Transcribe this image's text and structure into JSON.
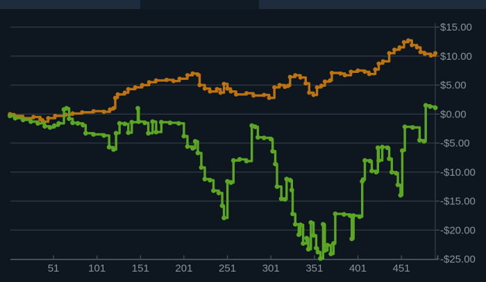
{
  "header": {
    "note": "two lighter panel segments of the window above the chart, no visible text"
  },
  "colors": {
    "background": "#0e161f",
    "header_segment": "#1e2c3d",
    "header_gap": "#111b25",
    "gridline": "#323d48",
    "axis_line": "#5a646e",
    "tick": "#46505a",
    "label_text": "#8a939c",
    "series_orange": "#bd7310",
    "series_green": "#5ba724"
  },
  "chart_data": {
    "type": "line",
    "title": "",
    "xlabel": "",
    "ylabel": "",
    "legend": "none",
    "grid": "horizontal",
    "style": "stepped line with point markers",
    "x_range": [
      1,
      490
    ],
    "y_range": [
      -25,
      15
    ],
    "x_axis": {
      "ticks": [
        51,
        101,
        151,
        201,
        251,
        301,
        351,
        401,
        451
      ],
      "labels": [
        "51",
        "101",
        "151",
        "201",
        "251",
        "301",
        "351",
        "401",
        "451"
      ]
    },
    "y_axis": {
      "side": "right",
      "ticks": [
        15,
        10,
        5,
        0,
        -5,
        -10,
        -15,
        -20,
        -25
      ],
      "labels": [
        "$15.00",
        "$10.00",
        "$5.00",
        "$0.00",
        "-$5.00",
        "-$10.00",
        "-$15.00",
        "-$20.00",
        "-$25.00"
      ]
    },
    "series": [
      {
        "name": "orange-series",
        "color": "#bd7310",
        "points": [
          [
            1,
            0
          ],
          [
            6,
            -0.3
          ],
          [
            16,
            -0.7
          ],
          [
            28,
            -0.5
          ],
          [
            36,
            -0.9
          ],
          [
            39,
            -1.3
          ],
          [
            45,
            -0.7
          ],
          [
            53,
            -0.3
          ],
          [
            65,
            -0.1
          ],
          [
            73,
            0.1
          ],
          [
            84,
            0.3
          ],
          [
            97,
            0.5
          ],
          [
            109,
            0.4
          ],
          [
            116,
            0.8
          ],
          [
            120,
            1.0
          ],
          [
            122,
            2.8
          ],
          [
            125,
            3.4
          ],
          [
            133,
            3.7
          ],
          [
            137,
            4.3
          ],
          [
            145,
            4.6
          ],
          [
            153,
            5.0
          ],
          [
            161,
            5.5
          ],
          [
            169,
            5.8
          ],
          [
            181,
            5.9
          ],
          [
            189,
            5.7
          ],
          [
            196,
            6.1
          ],
          [
            205,
            6.7
          ],
          [
            211,
            7.0
          ],
          [
            217,
            6.8
          ],
          [
            219,
            5.0
          ],
          [
            225,
            4.4
          ],
          [
            231,
            3.9
          ],
          [
            239,
            4.3
          ],
          [
            243,
            3.7
          ],
          [
            247,
            5.2
          ],
          [
            251,
            4.4
          ],
          [
            255,
            3.9
          ],
          [
            261,
            3.4
          ],
          [
            273,
            3.6
          ],
          [
            281,
            3.2
          ],
          [
            293,
            3.3
          ],
          [
            299,
            2.8
          ],
          [
            305,
            4.6
          ],
          [
            311,
            5.0
          ],
          [
            317,
            4.7
          ],
          [
            321,
            4.9
          ],
          [
            323,
            6.4
          ],
          [
            329,
            6.7
          ],
          [
            335,
            6.3
          ],
          [
            341,
            5.3
          ],
          [
            345,
            3.7
          ],
          [
            350,
            3.3
          ],
          [
            354,
            4.6
          ],
          [
            359,
            4.9
          ],
          [
            363,
            5.6
          ],
          [
            369,
            5.8
          ],
          [
            371,
            7.1
          ],
          [
            381,
            7.0
          ],
          [
            386,
            6.7
          ],
          [
            393,
            7.3
          ],
          [
            401,
            7.5
          ],
          [
            409,
            7.3
          ],
          [
            414,
            6.9
          ],
          [
            421,
            7.7
          ],
          [
            425,
            8.7
          ],
          [
            430,
            9.1
          ],
          [
            437,
            10.5
          ],
          [
            443,
            11.1
          ],
          [
            449,
            11.5
          ],
          [
            454,
            12.4
          ],
          [
            459,
            12.7
          ],
          [
            463,
            11.9
          ],
          [
            469,
            11.5
          ],
          [
            473,
            10.7
          ],
          [
            478,
            10.4
          ],
          [
            485,
            10.1
          ],
          [
            490,
            10.5
          ]
        ]
      },
      {
        "name": "green-series",
        "color": "#5ba724",
        "points": [
          [
            1,
            -0.3
          ],
          [
            7,
            -0.7
          ],
          [
            16,
            -1.0
          ],
          [
            25,
            -1.3
          ],
          [
            33,
            -1.6
          ],
          [
            41,
            -2.1
          ],
          [
            47,
            -2.3
          ],
          [
            52,
            -2.0
          ],
          [
            57,
            -1.6
          ],
          [
            63,
            0.8
          ],
          [
            66,
            1.0
          ],
          [
            69,
            -0.8
          ],
          [
            73,
            -1.5
          ],
          [
            79,
            -1.6
          ],
          [
            85,
            -1.9
          ],
          [
            88,
            -3.3
          ],
          [
            97,
            -3.5
          ],
          [
            109,
            -3.7
          ],
          [
            115,
            -5.7
          ],
          [
            120,
            -6.1
          ],
          [
            123,
            -3.3
          ],
          [
            127,
            -1.6
          ],
          [
            133,
            -1.7
          ],
          [
            137,
            -3.2
          ],
          [
            141,
            -1.4
          ],
          [
            148,
            1.0
          ],
          [
            149,
            -1.3
          ],
          [
            156,
            -1.5
          ],
          [
            160,
            -3.3
          ],
          [
            165,
            -1.3
          ],
          [
            169,
            -3.1
          ],
          [
            175,
            -1.4
          ],
          [
            185,
            -1.5
          ],
          [
            195,
            -1.6
          ],
          [
            201,
            -3.8
          ],
          [
            205,
            -5.6
          ],
          [
            211,
            -5.9
          ],
          [
            214,
            -4.7
          ],
          [
            217,
            -6.7
          ],
          [
            221,
            -9.2
          ],
          [
            225,
            -11.2
          ],
          [
            231,
            -11.4
          ],
          [
            235,
            -13.2
          ],
          [
            241,
            -13.6
          ],
          [
            245,
            -15.8
          ],
          [
            247,
            -17.9
          ],
          [
            251,
            -11.6
          ],
          [
            255,
            -11.8
          ],
          [
            258,
            -8.0
          ],
          [
            265,
            -7.8
          ],
          [
            273,
            -8.1
          ],
          [
            279,
            -2.0
          ],
          [
            283,
            -2.2
          ],
          [
            286,
            -4.0
          ],
          [
            293,
            -4.1
          ],
          [
            301,
            -4.3
          ],
          [
            303,
            -6.4
          ],
          [
            306,
            -8.6
          ],
          [
            308,
            -12.5
          ],
          [
            313,
            -14.6
          ],
          [
            317,
            -14.7
          ],
          [
            319,
            -11.2
          ],
          [
            323,
            -11.4
          ],
          [
            325,
            -13.1
          ],
          [
            326,
            -17.2
          ],
          [
            329,
            -19.0
          ],
          [
            333,
            -20.8
          ],
          [
            335,
            -19.1
          ],
          [
            338,
            -22.3
          ],
          [
            342,
            -21.4
          ],
          [
            344,
            -23.3
          ],
          [
            347,
            -18.7
          ],
          [
            350,
            -20.9
          ],
          [
            353,
            -23.1
          ],
          [
            355,
            -23.8
          ],
          [
            358,
            -24.9
          ],
          [
            361,
            -19.0
          ],
          [
            363,
            -23.5
          ],
          [
            366,
            -22.6
          ],
          [
            370,
            -24.1
          ],
          [
            373,
            -22.3
          ],
          [
            375,
            -17.2
          ],
          [
            385,
            -17.3
          ],
          [
            392,
            -17.5
          ],
          [
            394,
            -21.5
          ],
          [
            396,
            -17.5
          ],
          [
            403,
            -17.7
          ],
          [
            406,
            -11.6
          ],
          [
            407,
            -11.3
          ],
          [
            409,
            -8.0
          ],
          [
            415,
            -8.1
          ],
          [
            417,
            -9.8
          ],
          [
            422,
            -10.0
          ],
          [
            424,
            -5.8
          ],
          [
            425,
            -8.0
          ],
          [
            429,
            -5.7
          ],
          [
            435,
            -5.8
          ],
          [
            437,
            -7.7
          ],
          [
            440,
            -10.0
          ],
          [
            445,
            -10.2
          ],
          [
            447,
            -12.2
          ],
          [
            450,
            -14.0
          ],
          [
            452,
            -6.3
          ],
          [
            455,
            -2.2
          ],
          [
            464,
            -2.3
          ],
          [
            472,
            -4.5
          ],
          [
            477,
            -4.7
          ],
          [
            479,
            1.5
          ],
          [
            484,
            1.3
          ],
          [
            490,
            1.1
          ]
        ]
      }
    ]
  }
}
